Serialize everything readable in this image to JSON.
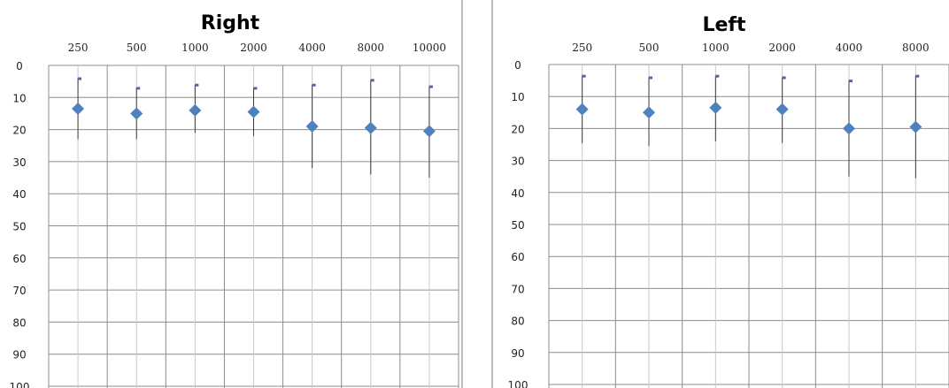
{
  "chart_data": [
    {
      "type": "scatter",
      "title": "Right",
      "categories": [
        "250",
        "500",
        "1000",
        "2000",
        "4000",
        "8000",
        "10000"
      ],
      "y_ticks": [
        "0",
        "10",
        "20",
        "30",
        "40",
        "50",
        "60",
        "70",
        "80",
        "90",
        "100"
      ],
      "ylim": [
        0,
        100
      ],
      "y_reversed": true,
      "x_axis_position": "top",
      "grid": true,
      "series": [
        {
          "values": [
            13.5,
            15,
            14,
            14.5,
            19,
            19.5,
            20.5
          ],
          "err_low": [
            4,
            7,
            6,
            7,
            6,
            4.5,
            6.5
          ],
          "err_high": [
            23,
            23,
            21,
            22,
            32,
            34,
            35
          ],
          "color": "#4f81bd"
        }
      ]
    },
    {
      "type": "scatter",
      "title": "Left",
      "categories": [
        "250",
        "500",
        "1000",
        "2000",
        "4000",
        "8000"
      ],
      "y_ticks": [
        "0",
        "10",
        "20",
        "30",
        "40",
        "50",
        "60",
        "70",
        "80",
        "90",
        "100"
      ],
      "ylim": [
        0,
        100
      ],
      "y_reversed": true,
      "x_axis_position": "top",
      "grid": true,
      "series": [
        {
          "values": [
            14,
            15,
            13.5,
            14,
            20,
            19.5
          ],
          "err_low": [
            3.5,
            4,
            3.5,
            4,
            5,
            3.5
          ],
          "err_high": [
            24.5,
            25.5,
            24,
            24.5,
            35,
            35.5
          ],
          "color": "#4f81bd"
        }
      ]
    }
  ]
}
